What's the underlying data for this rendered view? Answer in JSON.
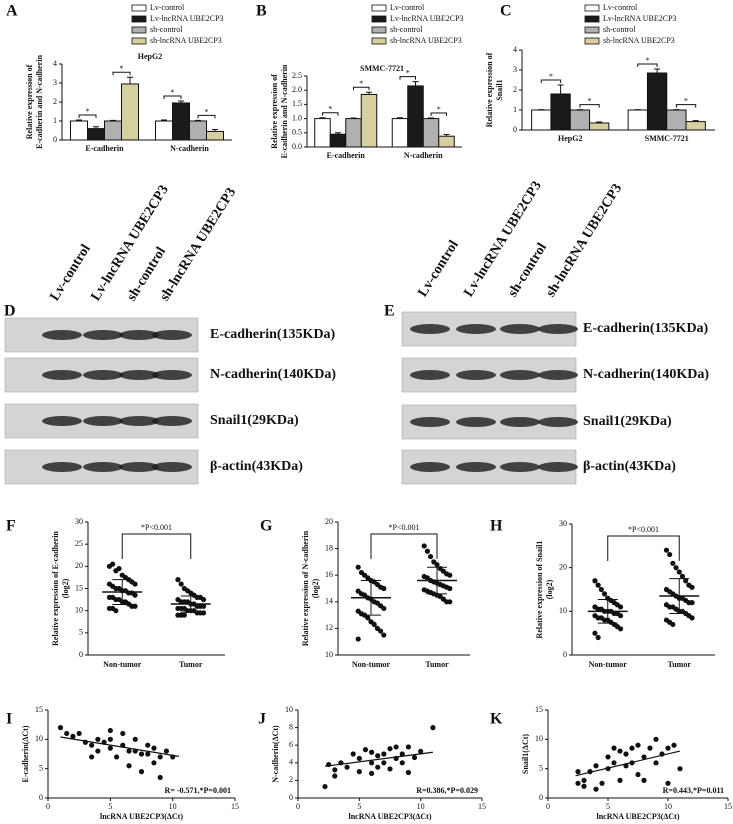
{
  "chart_data": [
    {
      "type": "bar",
      "panel": "A",
      "title": "HepG2",
      "ylabel": [
        "Relative expression of",
        "E-cadherin and N-cadherin"
      ],
      "categories": [
        "E-cadherin",
        "N-cadherin"
      ],
      "ylim": [
        0,
        4
      ],
      "yticks": [
        0,
        1,
        2,
        3,
        4
      ],
      "series": [
        {
          "name": "Lv-control",
          "color": "#ffffff",
          "values": [
            1,
            1
          ],
          "errors": [
            0.05,
            0.05
          ]
        },
        {
          "name": "Lv-lncRNA UBE2CP3",
          "color": "#1a1a1a",
          "values": [
            0.6,
            1.95
          ],
          "errors": [
            0.1,
            0.1
          ]
        },
        {
          "name": "sh-control",
          "color": "#b0b0b0",
          "values": [
            1,
            1
          ],
          "errors": [
            0.03,
            0.03
          ]
        },
        {
          "name": "sh-lncRNA UBE2CP3",
          "color": "#d8cfa0",
          "values": [
            2.95,
            0.45
          ],
          "errors": [
            0.35,
            0.1
          ]
        }
      ],
      "annotations": [
        "*",
        "*",
        "*",
        "*"
      ]
    },
    {
      "type": "bar",
      "panel": "B",
      "title": "SMMC-7721",
      "ylabel": [
        "Relative expression of",
        "E-cadherin and N-cadherin"
      ],
      "categories": [
        "E-cadherin",
        "N-cadherin"
      ],
      "ylim": [
        0,
        2.5
      ],
      "yticks": [
        {
          "value": 0,
          "label": "0.0"
        },
        {
          "value": 0.5,
          "label": "0.5"
        },
        {
          "value": 1,
          "label": "1.0"
        },
        {
          "value": 1.5,
          "label": "1.5"
        },
        {
          "value": 2,
          "label": "2.0"
        },
        {
          "value": 2.5,
          "label": "2.5"
        }
      ],
      "series": [
        {
          "name": "Lv-control",
          "color": "#ffffff",
          "values": [
            1,
            1
          ],
          "errors": [
            0.03,
            0.03
          ]
        },
        {
          "name": "Lv-lncRNA UBE2CP3",
          "color": "#1a1a1a",
          "values": [
            0.45,
            2.15
          ],
          "errors": [
            0.05,
            0.15
          ]
        },
        {
          "name": "sh-control",
          "color": "#b0b0b0",
          "values": [
            1,
            1
          ],
          "errors": [
            0.02,
            0.02
          ]
        },
        {
          "name": "sh-lncRNA UBE2CP3",
          "color": "#d8cfa0",
          "values": [
            1.85,
            0.38
          ],
          "errors": [
            0.08,
            0.06
          ]
        }
      ],
      "annotations": [
        "*",
        "*",
        "*",
        "*"
      ]
    },
    {
      "type": "bar",
      "panel": "C",
      "ylabel": [
        "Relative expression of",
        "Snail1"
      ],
      "categories": [
        "HepG2",
        "SMMC-7721"
      ],
      "ylim": [
        0,
        4
      ],
      "yticks": [
        0,
        1,
        2,
        3,
        4
      ],
      "series": [
        {
          "name": "Lv-control",
          "color": "#ffffff",
          "values": [
            1,
            1
          ],
          "errors": [
            0.02,
            0.02
          ]
        },
        {
          "name": "Lv-lncRNA UBE2CP3",
          "color": "#1a1a1a",
          "values": [
            1.8,
            2.85
          ],
          "errors": [
            0.45,
            0.2
          ]
        },
        {
          "name": "sh-control",
          "color": "#b0b0b0",
          "values": [
            1,
            1
          ],
          "errors": [
            0.02,
            0.02
          ]
        },
        {
          "name": "sh-lncRNA UBE2CP3",
          "color": "#d8cfa0",
          "values": [
            0.35,
            0.42
          ],
          "errors": [
            0.05,
            0.05
          ]
        }
      ],
      "annotations": [
        "*",
        "*",
        "*",
        "*"
      ]
    },
    {
      "type": "strip",
      "panel": "F",
      "ylabel": [
        "Relative expression of E-cadherin",
        "(log2)"
      ],
      "categories": [
        "Non-tumor",
        "Tumor"
      ],
      "ylim": [
        0,
        30
      ],
      "yticks": [
        0,
        5,
        10,
        15,
        20,
        25,
        30
      ],
      "groups": [
        [
          20,
          20.5,
          19,
          19.5,
          18,
          17.5,
          17,
          16.5,
          16,
          16,
          15.5,
          15,
          15,
          14.5,
          14.5,
          14,
          14,
          13.5,
          13,
          13,
          12.5,
          12.5,
          12,
          12,
          11.5,
          11,
          11,
          10.5,
          10.5,
          10
        ],
        [
          17,
          16,
          15,
          14.5,
          14,
          13.5,
          13,
          13,
          12.5,
          12.5,
          12,
          12,
          12,
          11.5,
          11.5,
          11,
          11,
          11,
          10.5,
          10.5,
          10.5,
          10,
          10,
          10,
          9.5,
          9.5,
          9.5,
          9,
          9,
          9
        ]
      ],
      "means": [
        14.2,
        11.5
      ],
      "sds": [
        2.8,
        1.8
      ],
      "annotation": "*P<0.001"
    },
    {
      "type": "strip",
      "panel": "G",
      "ylabel": [
        "Relative expression of N-cadherin",
        "(log2)"
      ],
      "categories": [
        "Non-tumor",
        "Tumor"
      ],
      "ylim": [
        10,
        20
      ],
      "yticks": [
        10,
        12,
        14,
        16,
        18,
        20
      ],
      "groups": [
        [
          16.6,
          16.2,
          16,
          15.8,
          15.6,
          15.5,
          15.3,
          15.1,
          15,
          14.8,
          14.6,
          14.5,
          14.3,
          14.2,
          14,
          13.9,
          13.7,
          13.5,
          13.3,
          13.1,
          13,
          12.8,
          12.5,
          12.3,
          12,
          11.8,
          11.5,
          11.2
        ],
        [
          18.2,
          17.8,
          17.4,
          17,
          16.8,
          16.5,
          16.3,
          16.1,
          16,
          15.9,
          15.8,
          15.6,
          15.5,
          15.4,
          15.3,
          15.2,
          15.1,
          15,
          14.9,
          14.8,
          14.7,
          14.6,
          14.5,
          14.4,
          14.2,
          14,
          14
        ]
      ],
      "means": [
        14.3,
        15.6
      ],
      "sds": [
        1.3,
        1
      ],
      "annotation": "*P<0.001"
    },
    {
      "type": "strip",
      "panel": "H",
      "ylabel": [
        "Relative expression of Snail1",
        "(log2)"
      ],
      "categories": [
        "Non-tumor",
        "Tumor"
      ],
      "ylim": [
        0,
        30
      ],
      "yticks": [
        0,
        10,
        20,
        30
      ],
      "groups": [
        [
          17,
          16,
          15,
          14,
          13,
          12.5,
          12,
          11.5,
          11,
          11,
          10.5,
          10.5,
          10,
          10,
          10,
          9.5,
          9.5,
          9,
          9,
          8.5,
          8.5,
          8,
          8,
          7.5,
          7,
          6.5,
          6,
          5,
          4
        ],
        [
          24,
          23,
          21,
          20,
          19,
          18,
          17,
          16,
          15.5,
          15,
          14.5,
          14,
          13.5,
          13,
          13,
          12.5,
          12,
          12,
          11.5,
          11,
          11,
          10.5,
          10,
          10,
          9.5,
          9,
          8.5,
          8,
          7.5,
          7
        ]
      ],
      "means": [
        10,
        13.5
      ],
      "sds": [
        2.7,
        4
      ],
      "annotation": "*P<0.001"
    },
    {
      "type": "scatter",
      "panel": "I",
      "ylabel": [
        "E-cadherin(ΔCt)"
      ],
      "xlabel": "lncRNA UBE2CP3(ΔCt)",
      "xlim": [
        0,
        15
      ],
      "xticks": [
        0,
        5,
        10,
        15
      ],
      "ylim": [
        0,
        15
      ],
      "yticks": [
        0,
        5,
        10,
        15
      ],
      "x": [
        1,
        1.5,
        2,
        2.5,
        3,
        3.5,
        3.5,
        4,
        4,
        4.5,
        5,
        5,
        5,
        5.5,
        6,
        6,
        6.5,
        6.5,
        7,
        7,
        7.5,
        7.5,
        8,
        8,
        8.5,
        8.5,
        9,
        9.5,
        9,
        10
      ],
      "y": [
        12,
        11,
        10.5,
        11,
        9.5,
        9,
        7,
        10,
        8,
        9.5,
        11.5,
        10,
        8.5,
        7,
        11,
        9,
        8,
        5.5,
        10,
        8,
        4.5,
        7.5,
        9,
        7.5,
        8.5,
        6,
        7,
        8,
        3.5,
        7
      ],
      "fit": {
        "x": [
          1,
          10.5
        ],
        "y": [
          10.4,
          7.1
        ]
      },
      "annotation": "R= -0.571,*P=0.001"
    },
    {
      "type": "scatter",
      "panel": "J",
      "ylabel": [
        "N-cadherin(ΔCt)"
      ],
      "xlabel": "lncRNA UBE2CP3(ΔCt)",
      "xlim": [
        0,
        15
      ],
      "xticks": [
        0,
        5,
        10,
        15
      ],
      "ylim": [
        0,
        10
      ],
      "yticks": [
        0,
        2,
        4,
        6,
        8,
        10
      ],
      "x": [
        2.2,
        2.5,
        3,
        3.5,
        4,
        4.5,
        5,
        5,
        5.5,
        6,
        6,
        6.5,
        6.5,
        7,
        7,
        7.5,
        7.5,
        8,
        8,
        8.5,
        8.5,
        9,
        9,
        9.5,
        10,
        11,
        3,
        6
      ],
      "y": [
        1.3,
        3.8,
        2.5,
        4,
        3.5,
        5,
        4.5,
        3,
        5.5,
        4,
        5.2,
        3.5,
        4.8,
        5,
        4,
        5.6,
        3.3,
        4.5,
        5.8,
        4,
        5,
        5.8,
        2.9,
        4.6,
        5.3,
        8,
        3.2,
        2.8
      ],
      "fit": {
        "x": [
          2.2,
          11
        ],
        "y": [
          3.6,
          5.2
        ]
      },
      "annotation": "R=0.386,*P=0.029"
    },
    {
      "type": "scatter",
      "panel": "K",
      "ylabel": [
        "Snail1(ΔCt)"
      ],
      "xlabel": "lncRNA UBE2CP3(ΔCt)",
      "xlim": [
        0,
        15
      ],
      "xticks": [
        0,
        5,
        10,
        15
      ],
      "ylim": [
        0,
        15
      ],
      "yticks": [
        0,
        5,
        10,
        15
      ],
      "x": [
        2.5,
        2.5,
        3,
        3.5,
        4,
        4,
        4.5,
        5,
        5,
        5.5,
        5.5,
        6,
        6,
        6.5,
        6.5,
        7,
        7,
        7.5,
        7.5,
        8,
        8,
        8.5,
        9,
        9,
        9.5,
        10,
        10,
        10.5,
        11,
        3
      ],
      "y": [
        4.5,
        2.5,
        3,
        4.5,
        1.5,
        5.5,
        2.5,
        7,
        5,
        8.5,
        6,
        8,
        3,
        7.5,
        5.5,
        8.5,
        6,
        9,
        4,
        7,
        3,
        8.5,
        10,
        6,
        7.5,
        8.5,
        2.5,
        9,
        5,
        2
      ],
      "fit": {
        "x": [
          2.3,
          11
        ],
        "y": [
          3.8,
          8
        ]
      },
      "annotation": "R=0.443,*P=0.011"
    }
  ],
  "blots": [
    {
      "panel": "D",
      "lanes": [
        "Lv-control",
        "Lv-lncRNA UBE2CP3",
        "sh-control",
        "sh-lncRNA UBE2CP3"
      ],
      "proteins": [
        "E-cadherin(135KDa)",
        "N-cadherin(140KDa)",
        "Snail1(29KDa)",
        "β-actin(43KDa)"
      ]
    },
    {
      "panel": "E",
      "lanes": [
        "Lv-control",
        "Lv-lncRNA UBE2CP3",
        "sh-control",
        "sh-lncRNA UBE2CP3"
      ],
      "proteins": [
        "E-cadherin(135KDa)",
        "N-cadherin(140KDa)",
        "Snail1(29KDa)",
        "β-actin(43KDa)"
      ]
    }
  ]
}
